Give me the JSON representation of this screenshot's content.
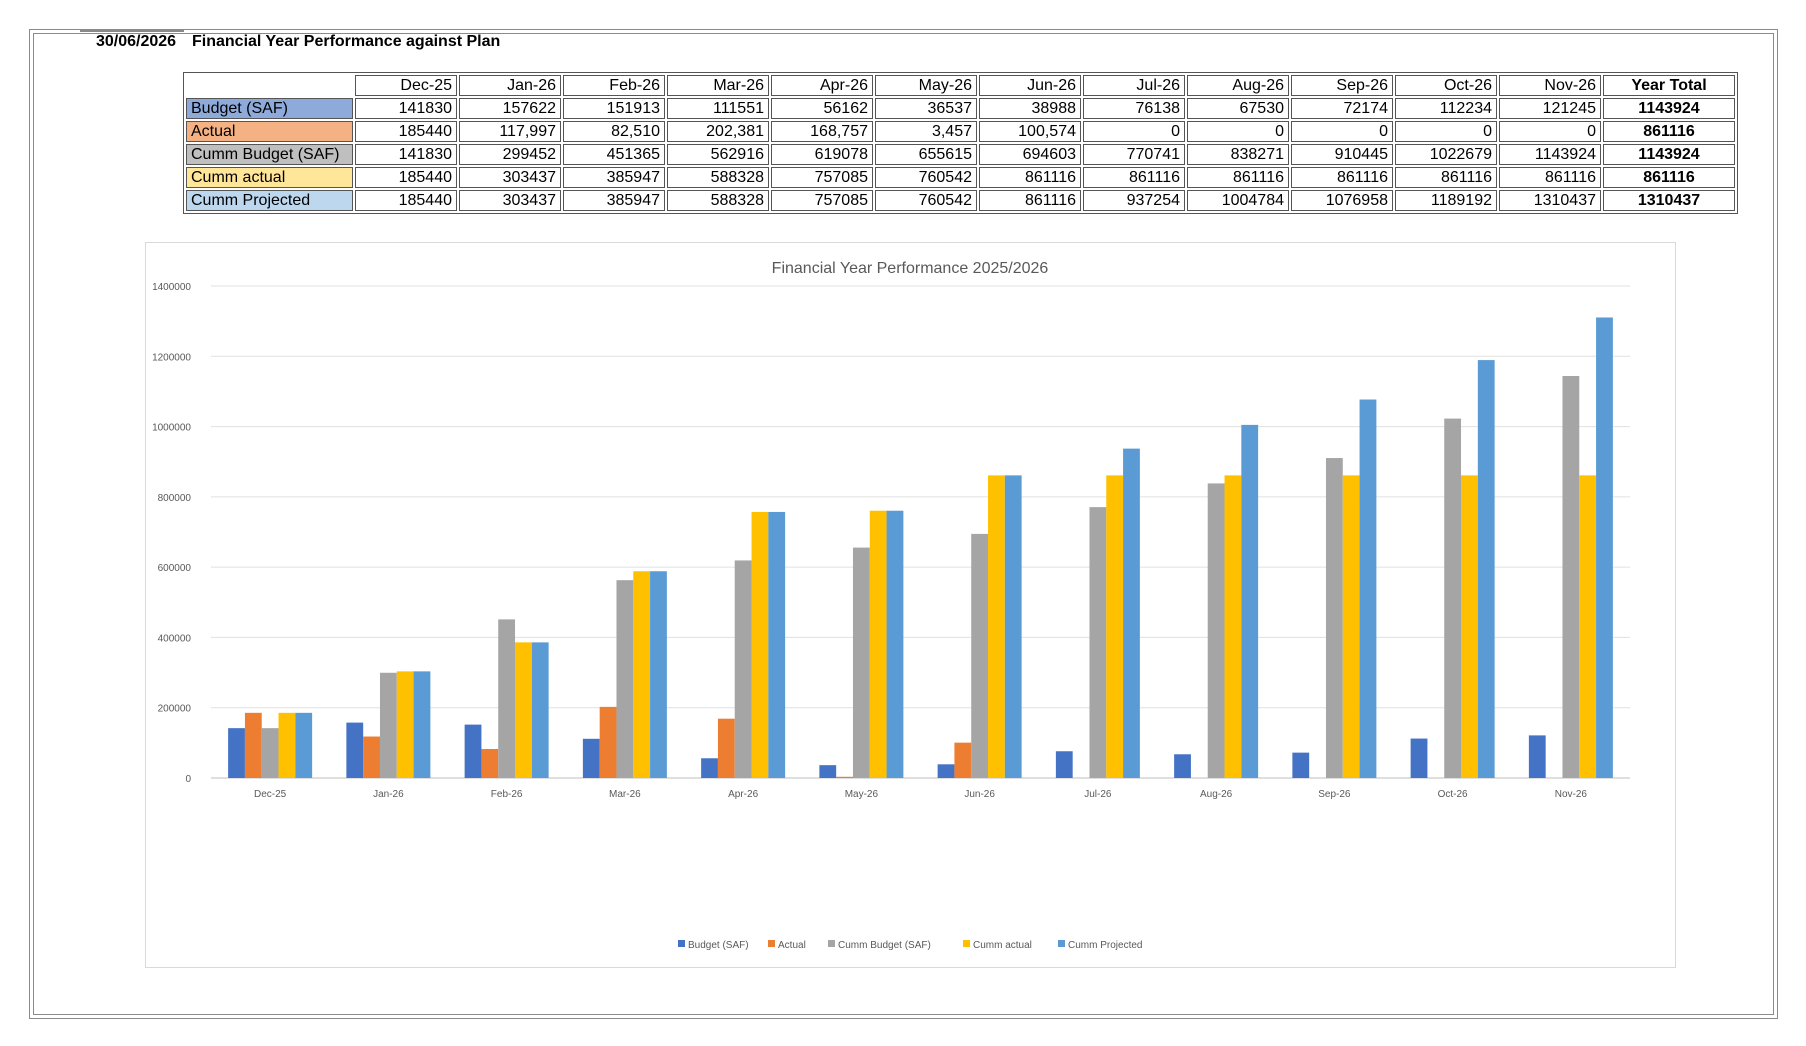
{
  "header": {
    "date": "30/06/2026",
    "title": "Financial Year Performance against Plan"
  },
  "table": {
    "columns": [
      "Dec-25",
      "Jan-26",
      "Feb-26",
      "Mar-26",
      "Apr-26",
      "May-26",
      "Jun-26",
      "Jul-26",
      "Aug-26",
      "Sep-26",
      "Oct-26",
      "Nov-26"
    ],
    "total_label": "Year Total",
    "rows": [
      {
        "label": "Budget (SAF)",
        "color": "#8eaadb",
        "values": [
          "141830",
          "157622",
          "151913",
          "111551",
          "56162",
          "36537",
          "38988",
          "76138",
          "67530",
          "72174",
          "112234",
          "121245"
        ],
        "total": "1143924"
      },
      {
        "label": "Actual",
        "color": "#f4b183",
        "values": [
          "185440",
          "117,997",
          "82,510",
          "202,381",
          "168,757",
          "3,457",
          "100,574",
          "0",
          "0",
          "0",
          "0",
          "0"
        ],
        "total": "861116"
      },
      {
        "label": "Cumm  Budget (SAF)",
        "color": "#bfbfbf",
        "values": [
          "141830",
          "299452",
          "451365",
          "562916",
          "619078",
          "655615",
          "694603",
          "770741",
          "838271",
          "910445",
          "1022679",
          "1143924"
        ],
        "total": "1143924"
      },
      {
        "label": "Cumm actual",
        "color": "#ffe699",
        "values": [
          "185440",
          "303437",
          "385947",
          "588328",
          "757085",
          "760542",
          "861116",
          "861116",
          "861116",
          "861116",
          "861116",
          "861116"
        ],
        "total": "861116"
      },
      {
        "label": "Cumm Projected",
        "color": "#bdd7ee",
        "values": [
          "185440",
          "303437",
          "385947",
          "588328",
          "757085",
          "760542",
          "861116",
          "937254",
          "1004784",
          "1076958",
          "1189192",
          "1310437"
        ],
        "total": "1310437"
      }
    ]
  },
  "chart_data": {
    "type": "bar",
    "title": "Financial Year Performance 2025/2026",
    "xlabel": "",
    "ylabel": "",
    "ylim": [
      0,
      1400000
    ],
    "yticks": [
      0,
      200000,
      400000,
      600000,
      800000,
      1000000,
      1200000,
      1400000
    ],
    "grid": true,
    "legend": "bottom",
    "categories": [
      "Dec-25",
      "Jan-26",
      "Feb-26",
      "Mar-26",
      "Apr-26",
      "May-26",
      "Jun-26",
      "Jul-26",
      "Aug-26",
      "Sep-26",
      "Oct-26",
      "Nov-26"
    ],
    "series": [
      {
        "name": "Budget (SAF)",
        "color": "#4472c4",
        "values": [
          141830,
          157622,
          151913,
          111551,
          56162,
          36537,
          38988,
          76138,
          67530,
          72174,
          112234,
          121245
        ]
      },
      {
        "name": "Actual",
        "color": "#ed7d31",
        "values": [
          185440,
          117997,
          82510,
          202381,
          168757,
          3457,
          100574,
          0,
          0,
          0,
          0,
          0
        ]
      },
      {
        "name": "Cumm  Budget (SAF)",
        "color": "#a5a5a5",
        "values": [
          141830,
          299452,
          451365,
          562916,
          619078,
          655615,
          694603,
          770741,
          838271,
          910445,
          1022679,
          1143924
        ]
      },
      {
        "name": "Cumm actual",
        "color": "#ffc000",
        "values": [
          185440,
          303437,
          385947,
          588328,
          757085,
          760542,
          861116,
          861116,
          861116,
          861116,
          861116,
          861116
        ]
      },
      {
        "name": "Cumm Projected",
        "color": "#5b9bd5",
        "values": [
          185440,
          303437,
          385947,
          588328,
          757085,
          760542,
          861116,
          937254,
          1004784,
          1076958,
          1189192,
          1310437
        ]
      }
    ]
  }
}
